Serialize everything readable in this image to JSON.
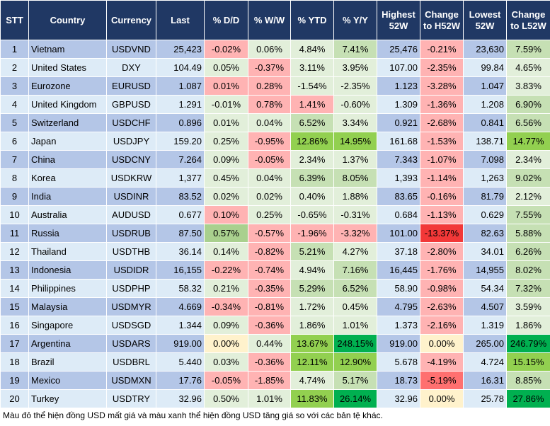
{
  "columns": [
    "STT",
    "Country",
    "Currency",
    "Last",
    "% D/D",
    "% W/W",
    "% YTD",
    "% Y/Y",
    "Highest 52W",
    "Change to H52W",
    "Lowest 52W",
    "Change to L52W"
  ],
  "colors": {
    "r": "#ffb3b3",
    "R": "#f23838",
    "M": "#ff7070",
    "g": "#e2efda",
    "G": "#c6e0b4",
    "H": "#a9d08e",
    "GG": "#92d050",
    "D": "#00b050",
    "y": "#fff2cc",
    "odd_row": "#b4c6e7",
    "even_row": "#ddebf7",
    "header": "#203864"
  },
  "rows": [
    [
      "1",
      "Vietnam",
      "USDVND",
      "25,423",
      "-0.02%",
      "0.06%",
      "4.84%",
      "7.41%",
      "25,476",
      "-0.21%",
      "23,630",
      "7.59%"
    ],
    [
      "2",
      "United States",
      "DXY",
      "104.49",
      "0.05%",
      "-0.37%",
      "3.11%",
      "3.95%",
      "107.00",
      "-2.35%",
      "99.84",
      "4.65%"
    ],
    [
      "3",
      "Eurozone",
      "EURUSD",
      "1.087",
      "0.01%",
      "0.28%",
      "-1.54%",
      "-2.35%",
      "1.123",
      "-3.28%",
      "1.047",
      "3.83%"
    ],
    [
      "4",
      "United Kingdom",
      "GBPUSD",
      "1.291",
      "-0.01%",
      "0.78%",
      "1.41%",
      "-0.60%",
      "1.309",
      "-1.36%",
      "1.208",
      "6.90%"
    ],
    [
      "5",
      "Switzerland",
      "USDCHF",
      "0.896",
      "0.01%",
      "0.04%",
      "6.52%",
      "3.34%",
      "0.921",
      "-2.68%",
      "0.841",
      "6.56%"
    ],
    [
      "6",
      "Japan",
      "USDJPY",
      "159.20",
      "0.25%",
      "-0.95%",
      "12.86%",
      "14.95%",
      "161.68",
      "-1.53%",
      "138.71",
      "14.77%"
    ],
    [
      "7",
      "China",
      "USDCNY",
      "7.264",
      "0.09%",
      "-0.05%",
      "2.34%",
      "1.37%",
      "7.343",
      "-1.07%",
      "7.098",
      "2.34%"
    ],
    [
      "8",
      "Korea",
      "USDKRW",
      "1,377",
      "0.45%",
      "0.04%",
      "6.39%",
      "8.05%",
      "1,393",
      "-1.14%",
      "1,263",
      "9.02%"
    ],
    [
      "9",
      "India",
      "USDINR",
      "83.52",
      "0.02%",
      "0.02%",
      "0.40%",
      "1.88%",
      "83.65",
      "-0.16%",
      "81.79",
      "2.12%"
    ],
    [
      "10",
      "Australia",
      "AUDUSD",
      "0.677",
      "0.10%",
      "0.25%",
      "-0.65%",
      "-0.31%",
      "0.684",
      "-1.13%",
      "0.629",
      "7.55%"
    ],
    [
      "11",
      "Russia",
      "USDRUB",
      "87.50",
      "0.57%",
      "-0.57%",
      "-1.96%",
      "-3.32%",
      "101.00",
      "-13.37%",
      "82.63",
      "5.88%"
    ],
    [
      "12",
      "Thailand",
      "USDTHB",
      "36.14",
      "0.14%",
      "-0.82%",
      "5.21%",
      "4.27%",
      "37.18",
      "-2.80%",
      "34.01",
      "6.26%"
    ],
    [
      "13",
      "Indonesia",
      "USDIDR",
      "16,155",
      "-0.22%",
      "-0.74%",
      "4.94%",
      "7.16%",
      "16,445",
      "-1.76%",
      "14,955",
      "8.02%"
    ],
    [
      "14",
      "Philippines",
      "USDPHP",
      "58.32",
      "0.21%",
      "-0.35%",
      "5.29%",
      "6.52%",
      "58.90",
      "-0.98%",
      "54.34",
      "7.32%"
    ],
    [
      "15",
      "Malaysia",
      "USDMYR",
      "4.669",
      "-0.34%",
      "-0.81%",
      "1.72%",
      "0.45%",
      "4.795",
      "-2.63%",
      "4.507",
      "3.59%"
    ],
    [
      "16",
      "Singapore",
      "USDSGD",
      "1.344",
      "0.09%",
      "-0.36%",
      "1.86%",
      "1.01%",
      "1.373",
      "-2.16%",
      "1.319",
      "1.86%"
    ],
    [
      "17",
      "Argentina",
      "USDARS",
      "919.00",
      "0.00%",
      "0.44%",
      "13.67%",
      "248.15%",
      "919.00",
      "0.00%",
      "265.00",
      "246.79%"
    ],
    [
      "18",
      "Brazil",
      "USDBRL",
      "5.440",
      "0.03%",
      "-0.36%",
      "12.11%",
      "12.90%",
      "5.678",
      "-4.19%",
      "4.724",
      "15.15%"
    ],
    [
      "19",
      "Mexico",
      "USDMXN",
      "17.76",
      "-0.05%",
      "-1.85%",
      "4.74%",
      "5.17%",
      "18.73",
      "-5.19%",
      "16.31",
      "8.85%"
    ],
    [
      "20",
      "Turkey",
      "USDTRY",
      "32.96",
      "0.50%",
      "1.01%",
      "11.83%",
      "26.14%",
      "32.96",
      "0.00%",
      "25.78",
      "27.86%"
    ]
  ],
  "cell_colors": [
    [
      "r",
      "g",
      "g",
      "G",
      "r",
      "G"
    ],
    [
      "g",
      "r",
      "g",
      "g",
      "r",
      "g"
    ],
    [
      "r",
      "r",
      "g",
      "g",
      "r",
      "g"
    ],
    [
      "g",
      "r",
      "r",
      "g",
      "r",
      "G"
    ],
    [
      "g",
      "g",
      "G",
      "g",
      "r",
      "G"
    ],
    [
      "g",
      "r",
      "GG",
      "GG",
      "r",
      "GG"
    ],
    [
      "g",
      "r",
      "g",
      "g",
      "r",
      "g"
    ],
    [
      "g",
      "g",
      "G",
      "G",
      "r",
      "G"
    ],
    [
      "g",
      "g",
      "g",
      "g",
      "r",
      "g"
    ],
    [
      "r",
      "g",
      "g",
      "g",
      "r",
      "G"
    ],
    [
      "H",
      "r",
      "r",
      "r",
      "R",
      "G"
    ],
    [
      "g",
      "r",
      "G",
      "g",
      "r",
      "G"
    ],
    [
      "r",
      "r",
      "g",
      "G",
      "r",
      "G"
    ],
    [
      "g",
      "r",
      "G",
      "G",
      "r",
      "G"
    ],
    [
      "r",
      "r",
      "g",
      "g",
      "r",
      "g"
    ],
    [
      "g",
      "r",
      "g",
      "g",
      "r",
      "g"
    ],
    [
      "y",
      "g",
      "GG",
      "D",
      "y",
      "D"
    ],
    [
      "g",
      "r",
      "GG",
      "GG",
      "r",
      "GG"
    ],
    [
      "r",
      "r",
      "g",
      "G",
      "M",
      "G"
    ],
    [
      "g",
      "g",
      "GG",
      "D",
      "y",
      "D"
    ]
  ],
  "footer": "Màu đỏ thể hiện đồng USD mất giá và màu xanh thể hiện đồng USD tăng giá so với các bản tệ khác."
}
